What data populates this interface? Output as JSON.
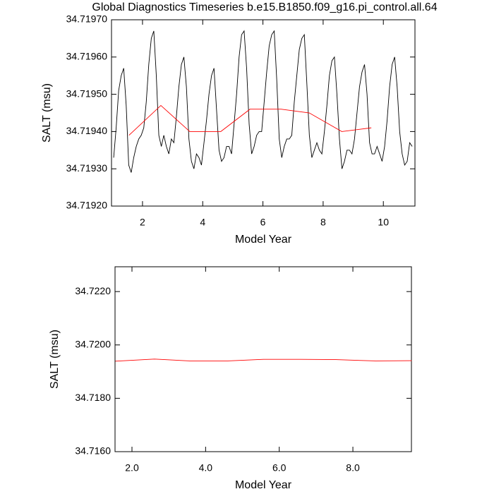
{
  "chart_data": [
    {
      "type": "line",
      "title": "Global Diagnostics Timeseries b.e15.B1850.f09_g16.pi_control.all.64",
      "xlabel": "Model Year",
      "ylabel": "SALT (msu)",
      "xlim": [
        0.97,
        11.05
      ],
      "ylim": [
        34.7192,
        34.7197
      ],
      "xticks": [
        2,
        4,
        6,
        8,
        10
      ],
      "yticks": [
        {
          "value": 34.7192,
          "label": "34.71920"
        },
        {
          "value": 34.7193,
          "label": "34.71930"
        },
        {
          "value": 34.7194,
          "label": "34.71940"
        },
        {
          "value": 34.7195,
          "label": "34.71950"
        },
        {
          "value": 34.7196,
          "label": "34.71960"
        },
        {
          "value": 34.7197,
          "label": "34.71970"
        }
      ],
      "series": [
        {
          "color": "#000000",
          "x": [
            1.042,
            1.125,
            1.208,
            1.292,
            1.375,
            1.458,
            1.542,
            1.625,
            1.708,
            1.792,
            1.875,
            1.958,
            2.042,
            2.125,
            2.208,
            2.292,
            2.375,
            2.458,
            2.542,
            2.625,
            2.708,
            2.792,
            2.875,
            2.958,
            3.042,
            3.125,
            3.208,
            3.292,
            3.375,
            3.458,
            3.542,
            3.625,
            3.708,
            3.792,
            3.875,
            3.958,
            4.042,
            4.125,
            4.208,
            4.292,
            4.375,
            4.458,
            4.542,
            4.625,
            4.708,
            4.792,
            4.875,
            4.958,
            5.042,
            5.125,
            5.208,
            5.292,
            5.375,
            5.458,
            5.542,
            5.625,
            5.708,
            5.792,
            5.875,
            5.958,
            6.042,
            6.125,
            6.208,
            6.292,
            6.375,
            6.458,
            6.542,
            6.625,
            6.708,
            6.792,
            6.875,
            6.958,
            7.042,
            7.125,
            7.208,
            7.292,
            7.375,
            7.458,
            7.542,
            7.625,
            7.708,
            7.792,
            7.875,
            7.958,
            8.042,
            8.125,
            8.208,
            8.292,
            8.375,
            8.458,
            8.542,
            8.625,
            8.708,
            8.792,
            8.875,
            8.958,
            9.042,
            9.125,
            9.208,
            9.292,
            9.375,
            9.458,
            9.542,
            9.625,
            9.708,
            9.792,
            9.875,
            9.958,
            10.042,
            10.125,
            10.208,
            10.292,
            10.375,
            10.458,
            10.542,
            10.625,
            10.708,
            10.792,
            10.875,
            10.958
          ],
          "values": [
            34.71933,
            34.71941,
            34.71951,
            34.71955,
            34.71957,
            34.71947,
            34.71931,
            34.71929,
            34.71933,
            34.71936,
            34.71938,
            34.71939,
            34.71941,
            34.71948,
            34.71958,
            34.71965,
            34.71967,
            34.71955,
            34.71939,
            34.71936,
            34.71939,
            34.71936,
            34.71934,
            34.71938,
            34.71937,
            34.71944,
            34.71952,
            34.71958,
            34.7196,
            34.71952,
            34.71938,
            34.71932,
            34.7193,
            34.71934,
            34.71933,
            34.71931,
            34.71937,
            34.71943,
            34.7195,
            34.71955,
            34.71957,
            34.71946,
            34.71935,
            34.71932,
            34.71933,
            34.71936,
            34.71936,
            34.71934,
            34.71942,
            34.7195,
            34.7196,
            34.71966,
            34.71967,
            34.71957,
            34.71942,
            34.71934,
            34.71936,
            34.71939,
            34.7194,
            34.7194,
            34.71948,
            34.71956,
            34.71963,
            34.71966,
            34.71967,
            34.71954,
            34.71938,
            34.71933,
            34.71936,
            34.71938,
            34.71938,
            34.71939,
            34.71948,
            34.71955,
            34.71962,
            34.71965,
            34.71966,
            34.71953,
            34.71939,
            34.71933,
            34.71935,
            34.71937,
            34.71935,
            34.71934,
            34.7194,
            34.71947,
            34.71955,
            34.71959,
            34.7196,
            34.7195,
            34.71938,
            34.7193,
            34.71932,
            34.71935,
            34.71935,
            34.71934,
            34.71938,
            34.71945,
            34.71952,
            34.71956,
            34.71958,
            34.7195,
            34.71937,
            34.71934,
            34.71934,
            34.71936,
            34.71934,
            34.71932,
            34.71936,
            34.71943,
            34.71952,
            34.71958,
            34.7196,
            34.71952,
            34.7194,
            34.71934,
            34.71931,
            34.71932,
            34.71937,
            34.71936
          ]
        },
        {
          "color": "#ff0000",
          "x": [
            1.55,
            2.61,
            3.57,
            4.6,
            5.57,
            6.6,
            7.54,
            8.62,
            9.6
          ],
          "values": [
            34.71939,
            34.71947,
            34.7194,
            34.7194,
            34.71946,
            34.71946,
            34.71945,
            34.7194,
            34.71941
          ]
        }
      ]
    },
    {
      "type": "line",
      "xlabel": "Model Year",
      "ylabel": "SALT (msu)",
      "xlim": [
        1.54,
        9.59
      ],
      "ylim": [
        34.716,
        34.72293
      ],
      "xticks": [
        {
          "value": 2,
          "label": "2.0"
        },
        {
          "value": 4,
          "label": "4.0"
        },
        {
          "value": 6,
          "label": "6.0"
        },
        {
          "value": 8,
          "label": "8.0"
        }
      ],
      "yticks": [
        {
          "value": 34.716,
          "label": "34.7160"
        },
        {
          "value": 34.718,
          "label": "34.7180"
        },
        {
          "value": 34.72,
          "label": "34.7200"
        },
        {
          "value": 34.722,
          "label": "34.7220"
        }
      ],
      "series": [
        {
          "color": "#ff0000",
          "x": [
            1.55,
            2.61,
            3.57,
            4.6,
            5.57,
            6.6,
            7.54,
            8.62,
            9.6
          ],
          "values": [
            34.71939,
            34.71947,
            34.7194,
            34.7194,
            34.71946,
            34.71946,
            34.71945,
            34.7194,
            34.71941
          ]
        }
      ]
    }
  ]
}
